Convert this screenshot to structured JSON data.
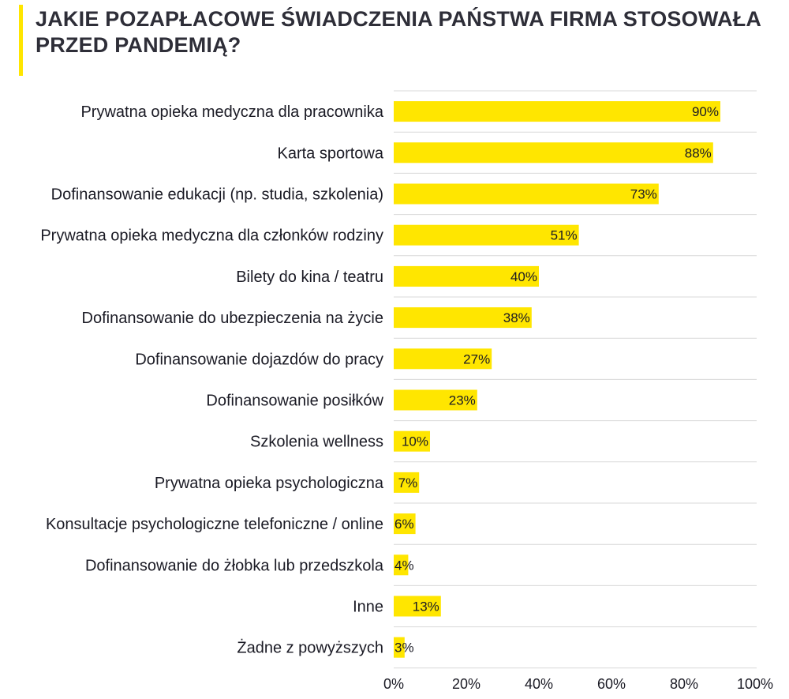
{
  "chart_data": {
    "type": "bar",
    "orientation": "horizontal",
    "title": "JAKIE POZAPŁACOWE ŚWIADCZENIA PAŃSTWA FIRMA STOSOWAŁA PRZED PANDEMIĄ?",
    "categories": [
      "Prywatna opieka medyczna dla pracownika",
      "Karta sportowa",
      "Dofinansowanie edukacji (np. studia, szkolenia)",
      "Prywatna opieka medyczna dla członków rodziny",
      "Bilety do kina / teatru",
      "Dofinansowanie do ubezpieczenia na życie",
      "Dofinansowanie dojazdów do pracy",
      "Dofinansowanie posiłków",
      "Szkolenia wellness",
      "Prywatna opieka psychologiczna",
      "Konsultacje psychologiczne telefoniczne / online",
      "Dofinansowanie do żłobka lub przedszkola",
      "Inne",
      "Żadne z powyższych"
    ],
    "values": [
      90,
      88,
      73,
      51,
      40,
      38,
      27,
      23,
      10,
      7,
      6,
      4,
      13,
      3
    ],
    "data_labels": [
      "90%",
      "88%",
      "73%",
      "51%",
      "40%",
      "38%",
      "27%",
      "23%",
      "10%",
      "7%",
      "6%",
      "4%",
      "13%",
      "3%"
    ],
    "xlim": [
      0,
      100
    ],
    "xticks": [
      "0%",
      "20%",
      "40%",
      "60%",
      "80%",
      "100%"
    ],
    "xlabel": "",
    "ylabel": "",
    "grid": true,
    "bar_color": "#ffe600",
    "accent_color": "#ffe600",
    "gridline_color": "#d9d9d9"
  }
}
